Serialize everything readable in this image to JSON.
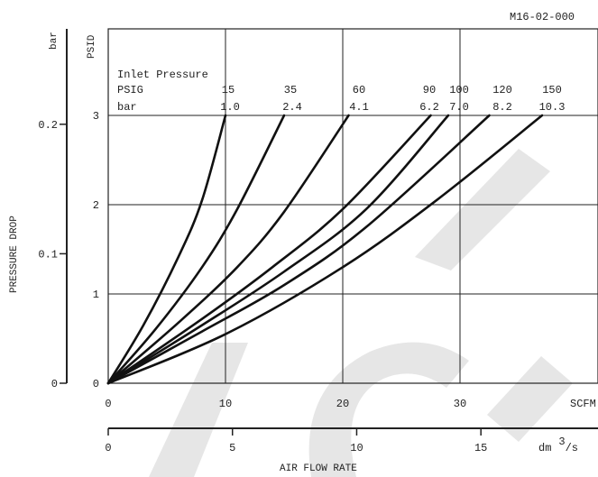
{
  "figure_id": "M16-02-000",
  "chart_data": {
    "type": "line",
    "legend": {
      "title": "Inlet Pressure",
      "row1_label": "PSIG",
      "row2_label": "bar",
      "psig": [
        "15",
        "35",
        "60",
        "90",
        "100",
        "120",
        "150"
      ],
      "bar": [
        "1.0",
        "2.4",
        "4.1",
        "6.2",
        "7.0",
        "8.2",
        "10.3"
      ]
    },
    "x_scfm": {
      "ticks": [
        "0",
        "10",
        "20",
        "30"
      ],
      "unit": "SCFM",
      "range": [
        0,
        40
      ]
    },
    "x_dm3s": {
      "ticks": [
        "0",
        "5",
        "10",
        "15"
      ],
      "unit_base": "dm",
      "unit_sup": "3",
      "unit_tail": "/s",
      "range": [
        0,
        18.88
      ]
    },
    "xlabel": "AIR FLOW RATE",
    "y_psid": {
      "ticks": [
        "0",
        "1",
        "2",
        "3"
      ],
      "unit": "PSID",
      "range": [
        0,
        4
      ]
    },
    "y_bar": {
      "ticks": [
        "0",
        "0.1",
        "0.2"
      ],
      "unit": "bar",
      "range": [
        0,
        0.276
      ]
    },
    "ylabel": "PRESSURE DROP",
    "grid": true,
    "series": [
      {
        "psig": "15",
        "points": [
          [
            0,
            0
          ],
          [
            3,
            0.65
          ],
          [
            6,
            1.42
          ],
          [
            8,
            2.05
          ],
          [
            10,
            3
          ]
        ]
      },
      {
        "psig": "35",
        "points": [
          [
            0,
            0
          ],
          [
            4,
            0.6
          ],
          [
            8,
            1.3
          ],
          [
            11,
            1.95
          ],
          [
            15,
            3
          ]
        ]
      },
      {
        "psig": "60",
        "points": [
          [
            0,
            0
          ],
          [
            6,
            0.68
          ],
          [
            11,
            1.3
          ],
          [
            15,
            1.92
          ],
          [
            20.5,
            3
          ]
        ]
      },
      {
        "psig": "90",
        "points": [
          [
            0,
            0
          ],
          [
            8,
            0.72
          ],
          [
            14,
            1.3
          ],
          [
            20,
            1.95
          ],
          [
            27.5,
            3
          ]
        ]
      },
      {
        "psig": "100",
        "points": [
          [
            0,
            0
          ],
          [
            8,
            0.65
          ],
          [
            15,
            1.25
          ],
          [
            22,
            1.95
          ],
          [
            29,
            3
          ]
        ]
      },
      {
        "psig": "120",
        "points": [
          [
            0,
            0
          ],
          [
            8,
            0.58
          ],
          [
            15,
            1.1
          ],
          [
            22,
            1.75
          ],
          [
            32.5,
            3
          ]
        ]
      },
      {
        "psig": "150",
        "points": [
          [
            0,
            0
          ],
          [
            10,
            0.55
          ],
          [
            20,
            1.3
          ],
          [
            28,
            2.05
          ],
          [
            37,
            3
          ]
        ]
      }
    ]
  }
}
